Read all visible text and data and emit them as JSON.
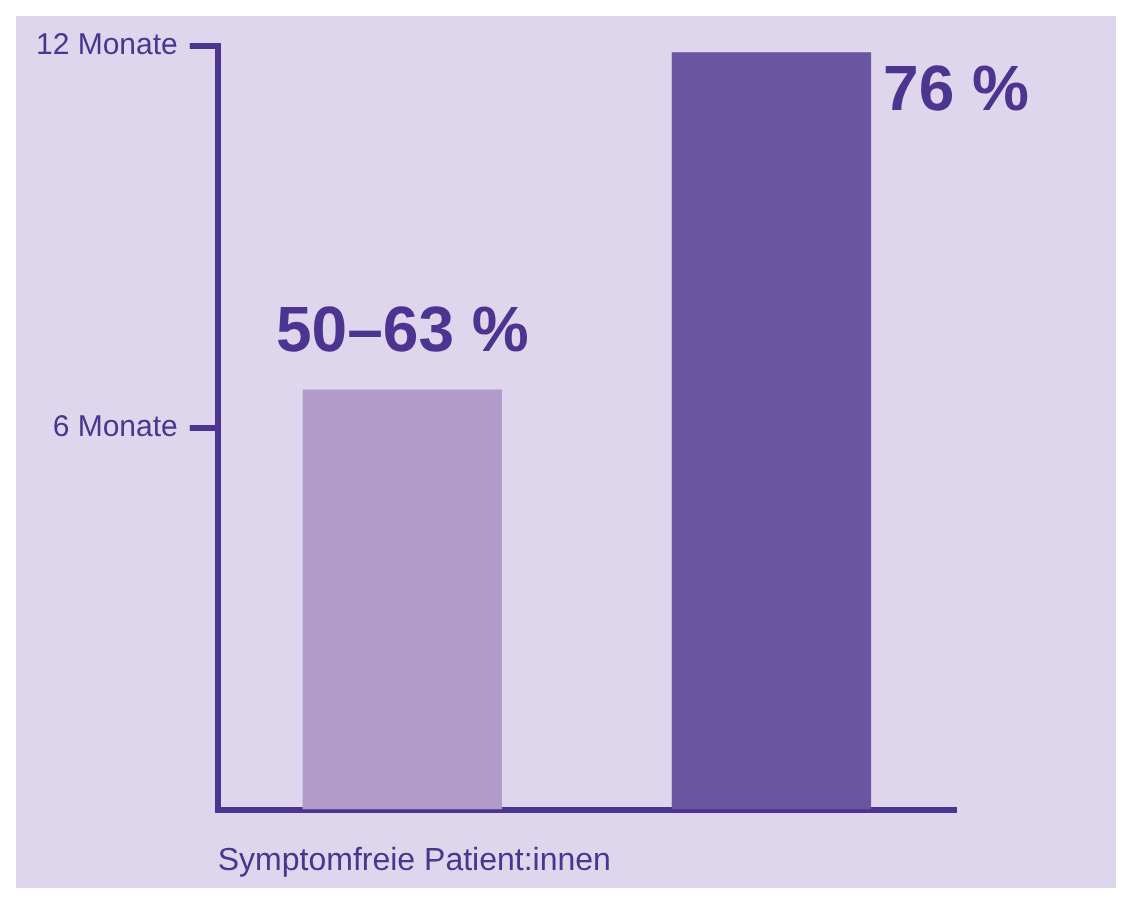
{
  "chart_data": {
    "type": "bar",
    "xlabel": "Symptomfreie Patient:innen",
    "categories": [
      null,
      null
    ],
    "values": [
      6.6,
      11.9
    ],
    "colors": [
      "#b09bc9",
      "#6a55a0"
    ],
    "annotations": [
      "50–63 %",
      "76 %"
    ],
    "ylim": [
      0,
      12
    ],
    "yticks": [
      {
        "value": 6,
        "label": "6 Monate"
      },
      {
        "value": 12,
        "label": "12 Monate"
      }
    ],
    "grid": false,
    "legend": false
  }
}
